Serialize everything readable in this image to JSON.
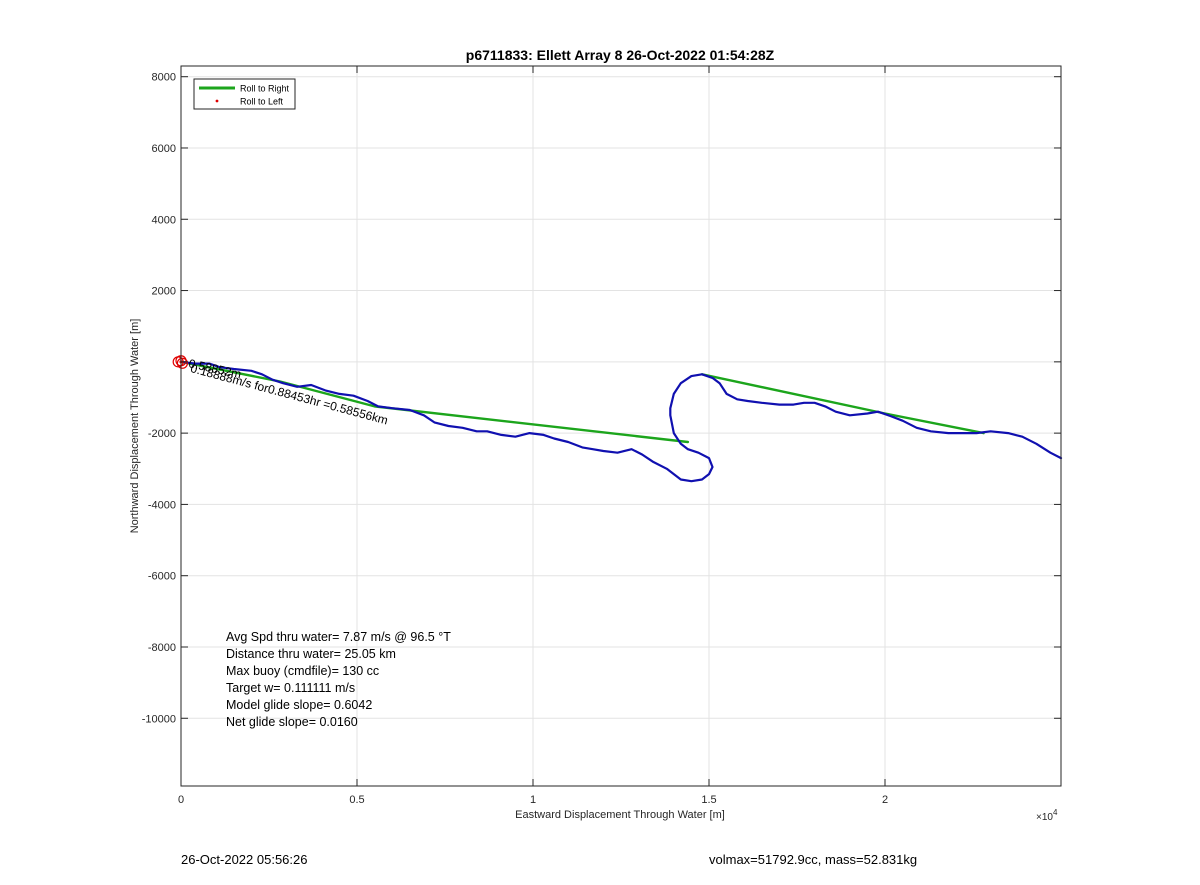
{
  "chart_data": {
    "type": "line",
    "title": "p6711833: Ellett Array 8 26-Oct-2022 01:54:28Z",
    "xlabel": "Eastward Displacement Through Water [m]",
    "ylabel": "Northward Displacement Through Water [m]",
    "x_exponent_label": "×10",
    "x_exponent_power": "4",
    "xlim": [
      0,
      25000
    ],
    "ylim": [
      -11900,
      8300
    ],
    "xticks": [
      0,
      5000,
      10000,
      15000,
      20000
    ],
    "xtick_labels": [
      "0",
      "0.5",
      "1",
      "1.5",
      "2"
    ],
    "yticks": [
      -10000,
      -8000,
      -6000,
      -4000,
      -2000,
      0,
      2000,
      4000,
      6000,
      8000
    ],
    "ytick_labels": [
      "-10000",
      "-8000",
      "-6000",
      "-4000",
      "-2000",
      "",
      "2000",
      "4000",
      "6000",
      "8000"
    ],
    "grid": true,
    "legend_position": "top-left",
    "series": [
      {
        "name": "Roll to Right",
        "color": "#1ca51c",
        "style": "line",
        "x": [
          0,
          2800,
          5500,
          14400,
          null,
          14800,
          20000,
          22800
        ],
        "y": [
          0,
          -550,
          -1250,
          -2250,
          null,
          -350,
          -1450,
          -2000
        ]
      },
      {
        "name": "Roll to Left",
        "color": "#e00000",
        "style": "marker",
        "x": [
          0
        ],
        "y": [
          0
        ]
      },
      {
        "color": "#1010b0",
        "style": "line",
        "x": [
          0,
          400,
          800,
          1100,
          1500,
          2000,
          2300,
          2600,
          2900,
          3300,
          3700,
          4100,
          4500,
          4900,
          5300,
          5600,
          6000,
          6500,
          6900,
          7200,
          7600,
          8000,
          8400,
          8700,
          9100,
          9500,
          9900,
          10300,
          10600,
          11000,
          11400,
          11700,
          12000,
          12400,
          12800,
          13100,
          13400,
          13800,
          14000,
          14200,
          14500,
          14800,
          15000,
          15100,
          15000,
          14700,
          14400,
          14200,
          14000,
          13900,
          13900,
          14000,
          14200,
          14500,
          14800,
          15100,
          15300,
          15500,
          15800,
          16100,
          16500,
          17000,
          17400,
          17700,
          18000,
          18300,
          18600,
          19000,
          19500,
          19800,
          20100,
          20500,
          20900,
          21300,
          21800,
          22200,
          22600,
          23000,
          23500,
          23900,
          24300,
          24700,
          25000
        ],
        "y": [
          0,
          -50,
          -50,
          -150,
          -200,
          -250,
          -350,
          -500,
          -600,
          -700,
          -650,
          -800,
          -900,
          -950,
          -1100,
          -1250,
          -1300,
          -1350,
          -1500,
          -1700,
          -1800,
          -1850,
          -1950,
          -1950,
          -2050,
          -2100,
          -2000,
          -2050,
          -2150,
          -2250,
          -2400,
          -2450,
          -2500,
          -2550,
          -2450,
          -2600,
          -2800,
          -3000,
          -3150,
          -3300,
          -3350,
          -3300,
          -3150,
          -2950,
          -2700,
          -2550,
          -2450,
          -2300,
          -2000,
          -1500,
          -1300,
          -900,
          -600,
          -400,
          -350,
          -450,
          -600,
          -900,
          -1050,
          -1100,
          -1150,
          -1200,
          -1200,
          -1150,
          -1150,
          -1250,
          -1400,
          -1500,
          -1450,
          -1400,
          -1500,
          -1650,
          -1850,
          -1950,
          -2000,
          -2000,
          -2000,
          -1950,
          -2000,
          -2100,
          -2300,
          -2550,
          -2700
        ]
      }
    ],
    "start_markers_x": [
      -80,
      0,
      40
    ],
    "start_markers_y": [
      0,
      30,
      -40
    ],
    "annotations": [
      {
        "text": "0.58852m",
        "x": 200,
        "y": -150,
        "rotation": 12
      },
      {
        "text": "0.18888m/s for0.88453hr =0.58556km",
        "x": 250,
        "y": -280,
        "rotation": 15
      }
    ]
  },
  "stats": [
    "Avg Spd thru water=  7.87 m/s @  96.5 °T",
    "Distance thru water= 25.05 km",
    "Max buoy (cmdfile)= 130 cc",
    "Target w= 0.111111 m/s",
    "Model glide slope= 0.6042",
    "Net glide slope= 0.0160"
  ],
  "footer": {
    "left": "26-Oct-2022 05:56:26",
    "right": "volmax=51792.9cc, mass=52.831kg"
  }
}
